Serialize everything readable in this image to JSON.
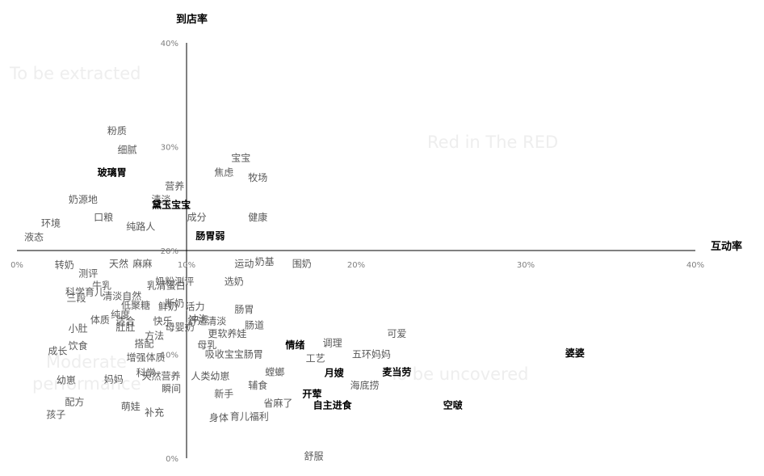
{
  "chart_data": {
    "type": "scatter",
    "xlabel": "互动率",
    "ylabel": "到店率",
    "xlim": [
      0,
      40
    ],
    "ylim": [
      0,
      40
    ],
    "x_ticks": [
      0,
      10,
      20,
      30,
      40
    ],
    "y_ticks": [
      0,
      10,
      20,
      30,
      40
    ],
    "x_tick_labels": [
      "0%",
      "10%",
      "20%",
      "30%",
      "40%"
    ],
    "y_tick_labels": [
      "0%",
      "10%",
      "20%",
      "30%",
      "40%"
    ],
    "x_axis_crosses_y_at": 20,
    "y_axis_crosses_x_at": 10,
    "grid": false,
    "legend": "none",
    "quadrant_labels": [
      {
        "name": "top-left",
        "text": "To be extracted"
      },
      {
        "name": "top-right",
        "text": "Red in The RED"
      },
      {
        "name": "bottom-left",
        "text": "Moderate performance"
      },
      {
        "name": "bottom-right",
        "text": "To be uncovered"
      }
    ],
    "points": [
      {
        "label": "粉质",
        "x": 5.9,
        "y": 31.5,
        "bold": false
      },
      {
        "label": "细腻",
        "x": 6.5,
        "y": 29.7,
        "bold": false
      },
      {
        "label": "宝宝",
        "x": 13.2,
        "y": 28.9,
        "bold": false
      },
      {
        "label": "玻璃胃",
        "x": 5.6,
        "y": 27.5,
        "bold": true
      },
      {
        "label": "焦虑",
        "x": 12.2,
        "y": 27.5,
        "bold": false
      },
      {
        "label": "牧场",
        "x": 14.2,
        "y": 27.0,
        "bold": false
      },
      {
        "label": "营养",
        "x": 9.3,
        "y": 26.2,
        "bold": false
      },
      {
        "label": "奶源地",
        "x": 3.9,
        "y": 24.9,
        "bold": false
      },
      {
        "label": "清淡",
        "x": 8.5,
        "y": 24.9,
        "bold": false
      },
      {
        "label": "黛玉宝宝",
        "x": 9.1,
        "y": 24.4,
        "bold": true
      },
      {
        "label": "口粮",
        "x": 5.1,
        "y": 23.2,
        "bold": false
      },
      {
        "label": "成分",
        "x": 10.6,
        "y": 23.2,
        "bold": false
      },
      {
        "label": "健康",
        "x": 14.2,
        "y": 23.2,
        "bold": false
      },
      {
        "label": "环境",
        "x": 2.0,
        "y": 22.6,
        "bold": false
      },
      {
        "label": "纯路人",
        "x": 7.3,
        "y": 22.3,
        "bold": false
      },
      {
        "label": "液态",
        "x": 1.0,
        "y": 21.3,
        "bold": false
      },
      {
        "label": "肠胃弱",
        "x": 11.4,
        "y": 21.4,
        "bold": true
      },
      {
        "label": "转奶",
        "x": 2.8,
        "y": 18.6,
        "bold": false
      },
      {
        "label": "天然",
        "x": 6.0,
        "y": 18.7,
        "bold": false
      },
      {
        "label": "麻麻",
        "x": 7.4,
        "y": 18.7,
        "bold": false
      },
      {
        "label": "运动",
        "x": 13.4,
        "y": 18.7,
        "bold": false
      },
      {
        "label": "奶基",
        "x": 14.6,
        "y": 18.9,
        "bold": false
      },
      {
        "label": "围奶",
        "x": 16.8,
        "y": 18.7,
        "bold": false
      },
      {
        "label": "测评",
        "x": 4.2,
        "y": 17.8,
        "bold": false
      },
      {
        "label": "奶粉测评",
        "x": 9.3,
        "y": 17.0,
        "bold": false
      },
      {
        "label": "选奶",
        "x": 12.8,
        "y": 17.0,
        "bold": false
      },
      {
        "label": "牛乳",
        "x": 5.0,
        "y": 16.6,
        "bold": false
      },
      {
        "label": "乳清蛋白",
        "x": 8.8,
        "y": 16.6,
        "bold": false
      },
      {
        "label": "科学育儿",
        "x": 4.0,
        "y": 16.0,
        "bold": false
      },
      {
        "label": "清淡自然",
        "x": 6.2,
        "y": 15.6,
        "bold": false
      },
      {
        "label": "三段",
        "x": 3.5,
        "y": 15.4,
        "bold": false
      },
      {
        "label": "断奶",
        "x": 9.3,
        "y": 14.9,
        "bold": false
      },
      {
        "label": "活力",
        "x": 10.5,
        "y": 14.6,
        "bold": false
      },
      {
        "label": "低聚糖",
        "x": 7.0,
        "y": 14.7,
        "bold": false
      },
      {
        "label": "鲜奶",
        "x": 8.9,
        "y": 14.6,
        "bold": false
      },
      {
        "label": "肠胃",
        "x": 13.4,
        "y": 14.3,
        "bold": false
      },
      {
        "label": "纯度",
        "x": 6.1,
        "y": 13.8,
        "bold": false
      },
      {
        "label": "体质",
        "x": 4.9,
        "y": 13.3,
        "bold": false
      },
      {
        "label": "适合",
        "x": 6.4,
        "y": 13.2,
        "bold": false
      },
      {
        "label": "快乐",
        "x": 8.6,
        "y": 13.2,
        "bold": false
      },
      {
        "label": "冲泡",
        "x": 10.7,
        "y": 13.4,
        "bold": false
      },
      {
        "label": "舒适清淡",
        "x": 11.2,
        "y": 13.2,
        "bold": false
      },
      {
        "label": "肠道",
        "x": 14.0,
        "y": 12.8,
        "bold": false
      },
      {
        "label": "小肚",
        "x": 3.6,
        "y": 12.5,
        "bold": false
      },
      {
        "label": "肚肚",
        "x": 6.4,
        "y": 12.6,
        "bold": false
      },
      {
        "label": "母婴奶",
        "x": 9.6,
        "y": 12.6,
        "bold": false
      },
      {
        "label": "更软养娃",
        "x": 12.4,
        "y": 12.0,
        "bold": false
      },
      {
        "label": "方法",
        "x": 8.1,
        "y": 11.8,
        "bold": false
      },
      {
        "label": "可爱",
        "x": 22.4,
        "y": 12.0,
        "bold": false
      },
      {
        "label": "搭配",
        "x": 7.5,
        "y": 11.0,
        "bold": false
      },
      {
        "label": "母乳",
        "x": 11.2,
        "y": 10.9,
        "bold": false
      },
      {
        "label": "情绪",
        "x": 16.4,
        "y": 10.9,
        "bold": true
      },
      {
        "label": "调理",
        "x": 18.6,
        "y": 11.1,
        "bold": false
      },
      {
        "label": "饮食",
        "x": 3.6,
        "y": 10.8,
        "bold": false
      },
      {
        "label": "成长",
        "x": 2.4,
        "y": 10.3,
        "bold": false
      },
      {
        "label": "吸收宝宝肠胃",
        "x": 12.8,
        "y": 10.0,
        "bold": false
      },
      {
        "label": "五环妈妈",
        "x": 20.9,
        "y": 10.0,
        "bold": false
      },
      {
        "label": "婆婆",
        "x": 32.9,
        "y": 10.1,
        "bold": true
      },
      {
        "label": "增强体质",
        "x": 7.6,
        "y": 9.7,
        "bold": false
      },
      {
        "label": "工艺",
        "x": 17.6,
        "y": 9.6,
        "bold": false
      },
      {
        "label": "科学",
        "x": 7.6,
        "y": 8.2,
        "bold": false
      },
      {
        "label": "天然营养",
        "x": 8.5,
        "y": 7.9,
        "bold": false
      },
      {
        "label": "人类幼崽",
        "x": 11.4,
        "y": 7.9,
        "bold": false
      },
      {
        "label": "螳螂",
        "x": 15.2,
        "y": 8.3,
        "bold": false
      },
      {
        "label": "月嫂",
        "x": 18.7,
        "y": 8.2,
        "bold": true
      },
      {
        "label": "麦当劳",
        "x": 22.4,
        "y": 8.3,
        "bold": true
      },
      {
        "label": "妈妈",
        "x": 5.7,
        "y": 7.6,
        "bold": false
      },
      {
        "label": "幼崽",
        "x": 2.9,
        "y": 7.5,
        "bold": false
      },
      {
        "label": "辅食",
        "x": 14.2,
        "y": 7.0,
        "bold": false
      },
      {
        "label": "海底捞",
        "x": 20.5,
        "y": 7.0,
        "bold": false
      },
      {
        "label": "瞬间",
        "x": 9.1,
        "y": 6.7,
        "bold": false
      },
      {
        "label": "新手",
        "x": 12.2,
        "y": 6.2,
        "bold": false
      },
      {
        "label": "开荤",
        "x": 17.4,
        "y": 6.2,
        "bold": true
      },
      {
        "label": "配方",
        "x": 3.4,
        "y": 5.4,
        "bold": false
      },
      {
        "label": "萌娃",
        "x": 6.7,
        "y": 5.0,
        "bold": false
      },
      {
        "label": "省麻了",
        "x": 15.4,
        "y": 5.3,
        "bold": false
      },
      {
        "label": "自主进食",
        "x": 18.6,
        "y": 5.1,
        "bold": true
      },
      {
        "label": "空啵",
        "x": 25.7,
        "y": 5.1,
        "bold": true
      },
      {
        "label": "补充",
        "x": 8.1,
        "y": 4.4,
        "bold": false
      },
      {
        "label": "孩子",
        "x": 2.3,
        "y": 4.2,
        "bold": false
      },
      {
        "label": "身体",
        "x": 11.9,
        "y": 3.9,
        "bold": false
      },
      {
        "label": "育儿福利",
        "x": 13.7,
        "y": 4.0,
        "bold": false
      },
      {
        "label": "舒服",
        "x": 17.5,
        "y": 0.2,
        "bold": false
      }
    ]
  }
}
